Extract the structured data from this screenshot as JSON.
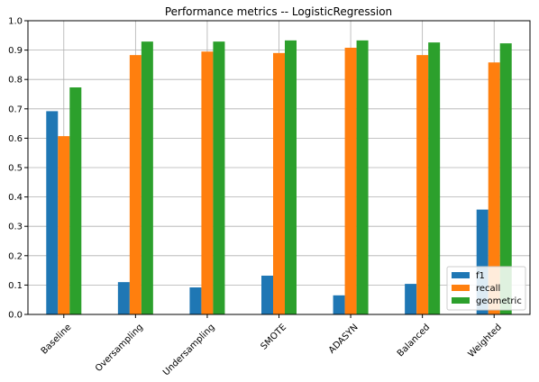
{
  "chart_data": {
    "type": "bar",
    "title": "Performance metrics -- LogisticRegression",
    "xlabel": "",
    "ylabel": "",
    "categories": [
      "Baseline",
      "Oversampling",
      "Undersampling",
      "SMOTE",
      "ADASYN",
      "Balanced",
      "Weighted"
    ],
    "series": [
      {
        "name": "f1",
        "color": "#1f77b4",
        "values": [
          0.692,
          0.11,
          0.092,
          0.132,
          0.065,
          0.104,
          0.357
        ]
      },
      {
        "name": "recall",
        "color": "#ff7f0e",
        "values": [
          0.607,
          0.883,
          0.895,
          0.89,
          0.908,
          0.883,
          0.858
        ]
      },
      {
        "name": "geometric",
        "color": "#2ca02c",
        "values": [
          0.773,
          0.929,
          0.929,
          0.933,
          0.933,
          0.926,
          0.923
        ]
      }
    ],
    "ylim": [
      0,
      1.0
    ],
    "yticks": [
      "0.0",
      "0.1",
      "0.2",
      "0.3",
      "0.4",
      "0.5",
      "0.6",
      "0.7",
      "0.8",
      "0.9",
      "1.0"
    ],
    "xtick_rotation_deg": 45,
    "grid": true,
    "legend_position": "lower-right"
  }
}
